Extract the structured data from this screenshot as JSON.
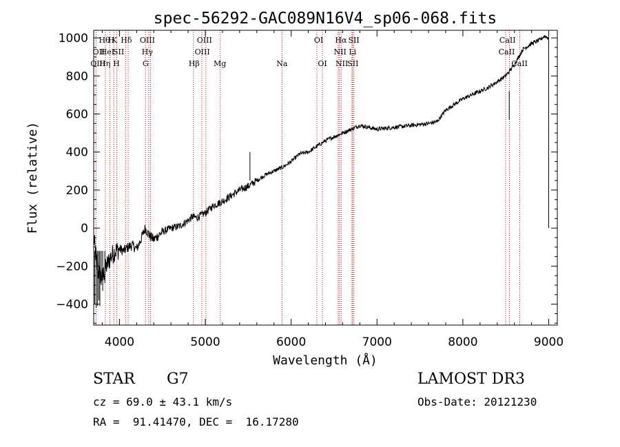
{
  "chart_data": {
    "type": "line",
    "title": "spec-56292-GAC089N16V4_sp06-068.fits",
    "xlabel": "Wavelength (Å)",
    "ylabel": "Flux (relative)",
    "xlim": [
      3700,
      9100
    ],
    "ylim": [
      -510,
      1040
    ],
    "xticks": [
      4000,
      5000,
      6000,
      7000,
      8000,
      9000
    ],
    "yticks": [
      -400,
      -200,
      0,
      200,
      400,
      600,
      800,
      1000
    ],
    "xtick_labels": [
      "4000",
      "5000",
      "6000",
      "7000",
      "8000",
      "9000"
    ],
    "ytick_labels": [
      "−400",
      "−200",
      "0",
      "200",
      "400",
      "600",
      "800",
      "1000"
    ],
    "grid": false,
    "line_color": "#000000",
    "marker_color": "#cc0000",
    "spectrum": {
      "name": "flux",
      "x": [
        3700,
        3750,
        3800,
        3850,
        3900,
        3950,
        4000,
        4050,
        4100,
        4150,
        4200,
        4250,
        4300,
        4350,
        4400,
        4500,
        4600,
        4700,
        4800,
        4850,
        4900,
        5000,
        5100,
        5200,
        5300,
        5400,
        5500,
        5600,
        5700,
        5800,
        5900,
        6000,
        6100,
        6200,
        6300,
        6400,
        6500,
        6550,
        6600,
        6700,
        6800,
        6900,
        7000,
        7100,
        7200,
        7300,
        7400,
        7500,
        7600,
        7700,
        7800,
        7900,
        8000,
        8100,
        8200,
        8300,
        8400,
        8500,
        8550,
        8600,
        8650,
        8700,
        8800,
        8900,
        8950,
        9000
      ],
      "y": [
        -50,
        -230,
        -260,
        -200,
        -150,
        -120,
        -110,
        -120,
        -100,
        -90,
        -110,
        -60,
        0,
        -40,
        -60,
        -20,
        0,
        10,
        40,
        60,
        55,
        80,
        120,
        140,
        170,
        200,
        220,
        250,
        280,
        300,
        320,
        350,
        390,
        400,
        430,
        460,
        480,
        490,
        500,
        520,
        540,
        530,
        520,
        525,
        530,
        535,
        540,
        545,
        550,
        560,
        620,
        650,
        680,
        700,
        720,
        740,
        770,
        800,
        830,
        860,
        900,
        940,
        970,
        990,
        1010,
        1000
      ]
    },
    "spikes": [
      {
        "x": 3712,
        "y": -400
      },
      {
        "x": 3730,
        "y": -420
      },
      {
        "x": 3745,
        "y": -410
      },
      {
        "x": 3760,
        "y": -380
      },
      {
        "x": 3772,
        "y": -410
      },
      {
        "x": 3788,
        "y": -300
      },
      {
        "x": 3805,
        "y": -330
      },
      {
        "x": 3830,
        "y": -290
      },
      {
        "x": 5520,
        "y": 400
      },
      {
        "x": 8540,
        "y": 720
      }
    ],
    "lines": [
      {
        "x": 3727,
        "labels": [
          "OII",
          "OIII"
        ]
      },
      {
        "x": 3835,
        "labels": [
          "Hη",
          "Hθ"
        ]
      },
      {
        "x": 3889,
        "labels": [
          "HeI"
        ]
      },
      {
        "x": 3934,
        "labels": [
          "K"
        ]
      },
      {
        "x": 3970,
        "labels": [
          "H"
        ]
      },
      {
        "x": 4072,
        "labels": [
          "SII"
        ]
      },
      {
        "x": 4102,
        "labels": [
          "Hδ"
        ]
      },
      {
        "x": 4304,
        "labels": [
          "G"
        ]
      },
      {
        "x": 4341,
        "labels": [
          "Hγ"
        ]
      },
      {
        "x": 4363,
        "labels": [
          "OIII"
        ]
      },
      {
        "x": 4861,
        "labels": [
          "Hβ"
        ]
      },
      {
        "x": 4959,
        "labels": [
          "OIII"
        ]
      },
      {
        "x": 5007,
        "labels": [
          "OIII"
        ]
      },
      {
        "x": 5175,
        "labels": [
          "Mg"
        ]
      },
      {
        "x": 5893,
        "labels": [
          "Na"
        ]
      },
      {
        "x": 6300,
        "labels": [
          "OI"
        ]
      },
      {
        "x": 6364,
        "labels": [
          "OI"
        ]
      },
      {
        "x": 6548,
        "labels": [
          "NII"
        ]
      },
      {
        "x": 6563,
        "labels": [
          "Hα"
        ]
      },
      {
        "x": 6583,
        "labels": [
          "NII"
        ]
      },
      {
        "x": 6708,
        "labels": [
          "Li"
        ]
      },
      {
        "x": 6716,
        "labels": [
          "SII"
        ]
      },
      {
        "x": 6731,
        "labels": [
          "SII"
        ]
      },
      {
        "x": 8498,
        "labels": [
          "CaII"
        ]
      },
      {
        "x": 8542,
        "labels": [
          "CaII"
        ]
      },
      {
        "x": 8662,
        "labels": [
          "CaII"
        ]
      }
    ],
    "line_label_rows": [
      {
        "x": 3825,
        "row": 0,
        "text": "Hθ"
      },
      {
        "x": 3905,
        "row": 0,
        "text": "H"
      },
      {
        "x": 3940,
        "row": 0,
        "text": "K"
      },
      {
        "x": 4080,
        "row": 0,
        "text": "Hδ"
      },
      {
        "x": 4325,
        "row": 0,
        "text": "OIII"
      },
      {
        "x": 4990,
        "row": 0,
        "text": "OIII"
      },
      {
        "x": 6320,
        "row": 0,
        "text": "OI"
      },
      {
        "x": 6580,
        "row": 0,
        "text": "Hα"
      },
      {
        "x": 6730,
        "row": 0,
        "text": "SII"
      },
      {
        "x": 8520,
        "row": 0,
        "text": "CaII"
      },
      {
        "x": 3760,
        "row": 1,
        "text": "OII"
      },
      {
        "x": 3860,
        "row": 1,
        "text": "HeI"
      },
      {
        "x": 3990,
        "row": 1,
        "text": "SII"
      },
      {
        "x": 4325,
        "row": 1,
        "text": "Hγ"
      },
      {
        "x": 4965,
        "row": 1,
        "text": "OIII"
      },
      {
        "x": 6570,
        "row": 1,
        "text": "NII"
      },
      {
        "x": 6715,
        "row": 1,
        "text": "Li"
      },
      {
        "x": 8510,
        "row": 1,
        "text": "CaII"
      },
      {
        "x": 3750,
        "row": 2,
        "text": "OIII"
      },
      {
        "x": 3830,
        "row": 2,
        "text": "Hη"
      },
      {
        "x": 3965,
        "row": 2,
        "text": "H"
      },
      {
        "x": 4305,
        "row": 2,
        "text": "G"
      },
      {
        "x": 4870,
        "row": 2,
        "text": "Hβ"
      },
      {
        "x": 5170,
        "row": 2,
        "text": "Mg"
      },
      {
        "x": 5893,
        "row": 2,
        "text": "Na"
      },
      {
        "x": 6364,
        "row": 2,
        "text": "OI"
      },
      {
        "x": 6590,
        "row": 2,
        "text": "NII"
      },
      {
        "x": 6720,
        "row": 2,
        "text": "SII"
      },
      {
        "x": 8660,
        "row": 2,
        "text": "CaII"
      }
    ]
  },
  "info": {
    "object_class": "STAR",
    "subclass": "G7",
    "survey": "LAMOST DR3",
    "cz_line": "cz = 69.0 ± 43.1 km/s",
    "obs_date_line": "Obs-Date: 20121230",
    "radec_line": "RA =  91.41470, DEC =  16.17280"
  }
}
